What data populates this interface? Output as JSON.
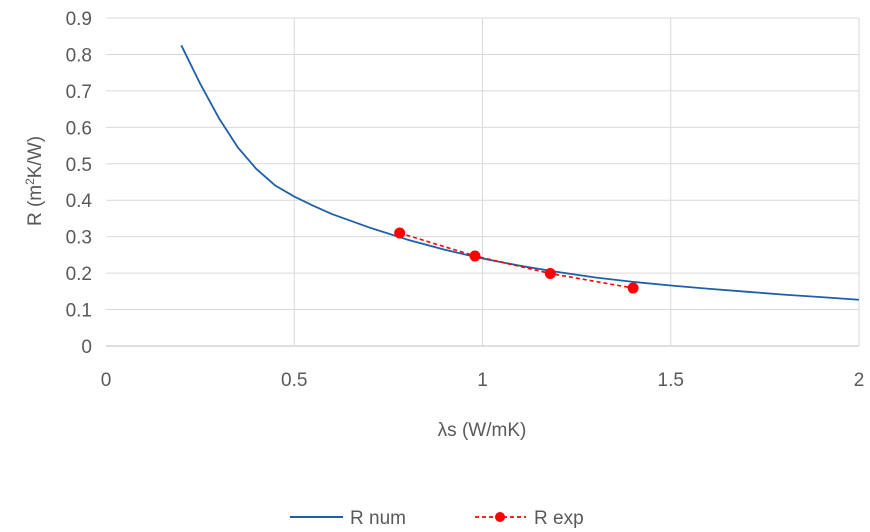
{
  "chart_data": {
    "type": "line",
    "xlabel": "λs (W/mK)",
    "ylabel_parts": [
      "R (m",
      "2",
      "K/W)"
    ],
    "xlim": [
      0,
      2
    ],
    "ylim": [
      0,
      0.9
    ],
    "xticks": [
      0,
      0.5,
      1,
      1.5,
      2
    ],
    "xtick_labels": [
      "0",
      "0.5",
      "1",
      "1.5",
      "2"
    ],
    "yticks": [
      0,
      0.1,
      0.2,
      0.3,
      0.4,
      0.5,
      0.6,
      0.7,
      0.8,
      0.9
    ],
    "ytick_labels": [
      "0",
      "0.1",
      "0.2",
      "0.3",
      "0.4",
      "0.5",
      "0.6",
      "0.7",
      "0.8",
      "0.9"
    ],
    "grid": true,
    "legend_position": "bottom",
    "series": [
      {
        "name": "R num",
        "color": "#1f5fa8",
        "style": "solid",
        "markers": false,
        "x": [
          0.2,
          0.25,
          0.3,
          0.35,
          0.4,
          0.45,
          0.5,
          0.55,
          0.6,
          0.7,
          0.8,
          0.9,
          1.0,
          1.1,
          1.2,
          1.3,
          1.4,
          1.5,
          1.6,
          1.7,
          1.8,
          1.9,
          2.0
        ],
        "y": [
          0.825,
          0.72,
          0.625,
          0.545,
          0.485,
          0.44,
          0.41,
          0.385,
          0.362,
          0.325,
          0.292,
          0.264,
          0.24,
          0.22,
          0.203,
          0.188,
          0.176,
          0.166,
          0.157,
          0.149,
          0.141,
          0.134,
          0.127
        ]
      },
      {
        "name": "R exp",
        "color": "#ff0000",
        "style": "dashed",
        "markers": true,
        "x": [
          0.78,
          0.98,
          1.18,
          1.4
        ],
        "y": [
          0.31,
          0.247,
          0.199,
          0.159
        ]
      }
    ]
  }
}
